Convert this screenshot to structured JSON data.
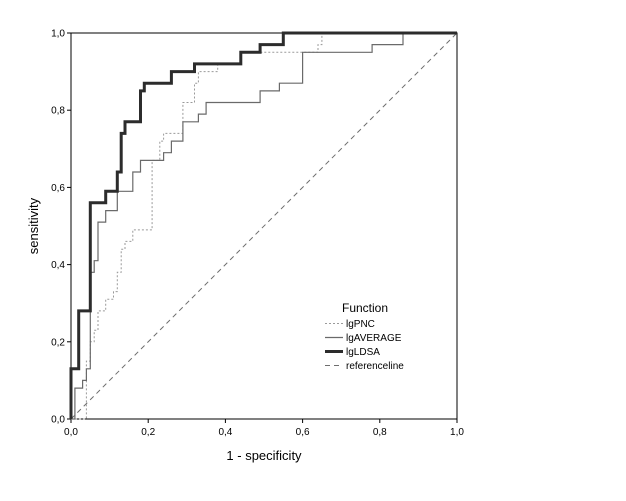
{
  "chart_data": {
    "type": "line",
    "xlabel": "1 - specificity",
    "ylabel": "sensitivity",
    "xlim": [
      0,
      1
    ],
    "ylim": [
      0,
      1
    ],
    "x_ticks": [
      "0,0",
      "0,2",
      "0,4",
      "0,6",
      "0,8",
      "1,0"
    ],
    "y_ticks": [
      "0,0",
      "0,2",
      "0,4",
      "0,6",
      "0,8",
      "1,0"
    ],
    "grid": false,
    "legend": {
      "title": "Function",
      "position": "bottom-right inside plot"
    },
    "series": [
      {
        "name": "lgPNC",
        "color": "#9a9a9a",
        "style": "dotted-thin",
        "points": [
          [
            0,
            0
          ],
          [
            0.04,
            0
          ],
          [
            0.04,
            0.15
          ],
          [
            0.05,
            0.15
          ],
          [
            0.05,
            0.2
          ],
          [
            0.06,
            0.2
          ],
          [
            0.06,
            0.23
          ],
          [
            0.07,
            0.23
          ],
          [
            0.07,
            0.28
          ],
          [
            0.09,
            0.28
          ],
          [
            0.09,
            0.31
          ],
          [
            0.11,
            0.31
          ],
          [
            0.11,
            0.33
          ],
          [
            0.12,
            0.33
          ],
          [
            0.12,
            0.38
          ],
          [
            0.13,
            0.38
          ],
          [
            0.13,
            0.44
          ],
          [
            0.14,
            0.44
          ],
          [
            0.14,
            0.46
          ],
          [
            0.16,
            0.46
          ],
          [
            0.16,
            0.49
          ],
          [
            0.21,
            0.49
          ],
          [
            0.21,
            0.67
          ],
          [
            0.23,
            0.67
          ],
          [
            0.23,
            0.72
          ],
          [
            0.24,
            0.72
          ],
          [
            0.24,
            0.74
          ],
          [
            0.29,
            0.74
          ],
          [
            0.29,
            0.82
          ],
          [
            0.32,
            0.82
          ],
          [
            0.32,
            0.87
          ],
          [
            0.33,
            0.87
          ],
          [
            0.33,
            0.9
          ],
          [
            0.38,
            0.9
          ],
          [
            0.38,
            0.92
          ],
          [
            0.44,
            0.92
          ],
          [
            0.44,
            0.95
          ],
          [
            0.64,
            0.95
          ],
          [
            0.64,
            0.97
          ],
          [
            0.65,
            0.97
          ],
          [
            0.65,
            1.0
          ],
          [
            1.0,
            1.0
          ]
        ]
      },
      {
        "name": "lgAVERAGE",
        "color": "#6a6a6a",
        "style": "solid-thin",
        "points": [
          [
            0,
            0
          ],
          [
            0.01,
            0
          ],
          [
            0.01,
            0.08
          ],
          [
            0.03,
            0.08
          ],
          [
            0.03,
            0.1
          ],
          [
            0.04,
            0.1
          ],
          [
            0.04,
            0.13
          ],
          [
            0.05,
            0.13
          ],
          [
            0.05,
            0.38
          ],
          [
            0.06,
            0.38
          ],
          [
            0.06,
            0.41
          ],
          [
            0.07,
            0.41
          ],
          [
            0.07,
            0.51
          ],
          [
            0.09,
            0.51
          ],
          [
            0.09,
            0.54
          ],
          [
            0.12,
            0.54
          ],
          [
            0.12,
            0.59
          ],
          [
            0.16,
            0.59
          ],
          [
            0.16,
            0.64
          ],
          [
            0.18,
            0.64
          ],
          [
            0.18,
            0.67
          ],
          [
            0.24,
            0.67
          ],
          [
            0.24,
            0.69
          ],
          [
            0.26,
            0.69
          ],
          [
            0.26,
            0.72
          ],
          [
            0.29,
            0.72
          ],
          [
            0.29,
            0.77
          ],
          [
            0.33,
            0.77
          ],
          [
            0.33,
            0.79
          ],
          [
            0.35,
            0.79
          ],
          [
            0.35,
            0.82
          ],
          [
            0.49,
            0.82
          ],
          [
            0.49,
            0.85
          ],
          [
            0.54,
            0.85
          ],
          [
            0.54,
            0.87
          ],
          [
            0.6,
            0.87
          ],
          [
            0.6,
            0.95
          ],
          [
            0.78,
            0.95
          ],
          [
            0.78,
            0.97
          ],
          [
            0.86,
            0.97
          ],
          [
            0.86,
            1.0
          ],
          [
            1.0,
            1.0
          ]
        ]
      },
      {
        "name": "lgLDSA",
        "color": "#2c2c2c",
        "style": "solid-thick",
        "points": [
          [
            0,
            0
          ],
          [
            0,
            0.13
          ],
          [
            0.02,
            0.13
          ],
          [
            0.02,
            0.28
          ],
          [
            0.05,
            0.28
          ],
          [
            0.05,
            0.56
          ],
          [
            0.09,
            0.56
          ],
          [
            0.09,
            0.59
          ],
          [
            0.12,
            0.59
          ],
          [
            0.12,
            0.64
          ],
          [
            0.13,
            0.64
          ],
          [
            0.13,
            0.74
          ],
          [
            0.14,
            0.74
          ],
          [
            0.14,
            0.77
          ],
          [
            0.18,
            0.77
          ],
          [
            0.18,
            0.85
          ],
          [
            0.19,
            0.85
          ],
          [
            0.19,
            0.87
          ],
          [
            0.26,
            0.87
          ],
          [
            0.26,
            0.9
          ],
          [
            0.32,
            0.9
          ],
          [
            0.32,
            0.92
          ],
          [
            0.44,
            0.92
          ],
          [
            0.44,
            0.95
          ],
          [
            0.49,
            0.95
          ],
          [
            0.49,
            0.97
          ],
          [
            0.55,
            0.97
          ],
          [
            0.55,
            1.0
          ],
          [
            1.0,
            1.0
          ]
        ]
      },
      {
        "name": "referenceline",
        "color": "#6e6e6e",
        "style": "dashed",
        "points": [
          [
            0,
            0
          ],
          [
            1,
            1
          ]
        ]
      }
    ]
  }
}
